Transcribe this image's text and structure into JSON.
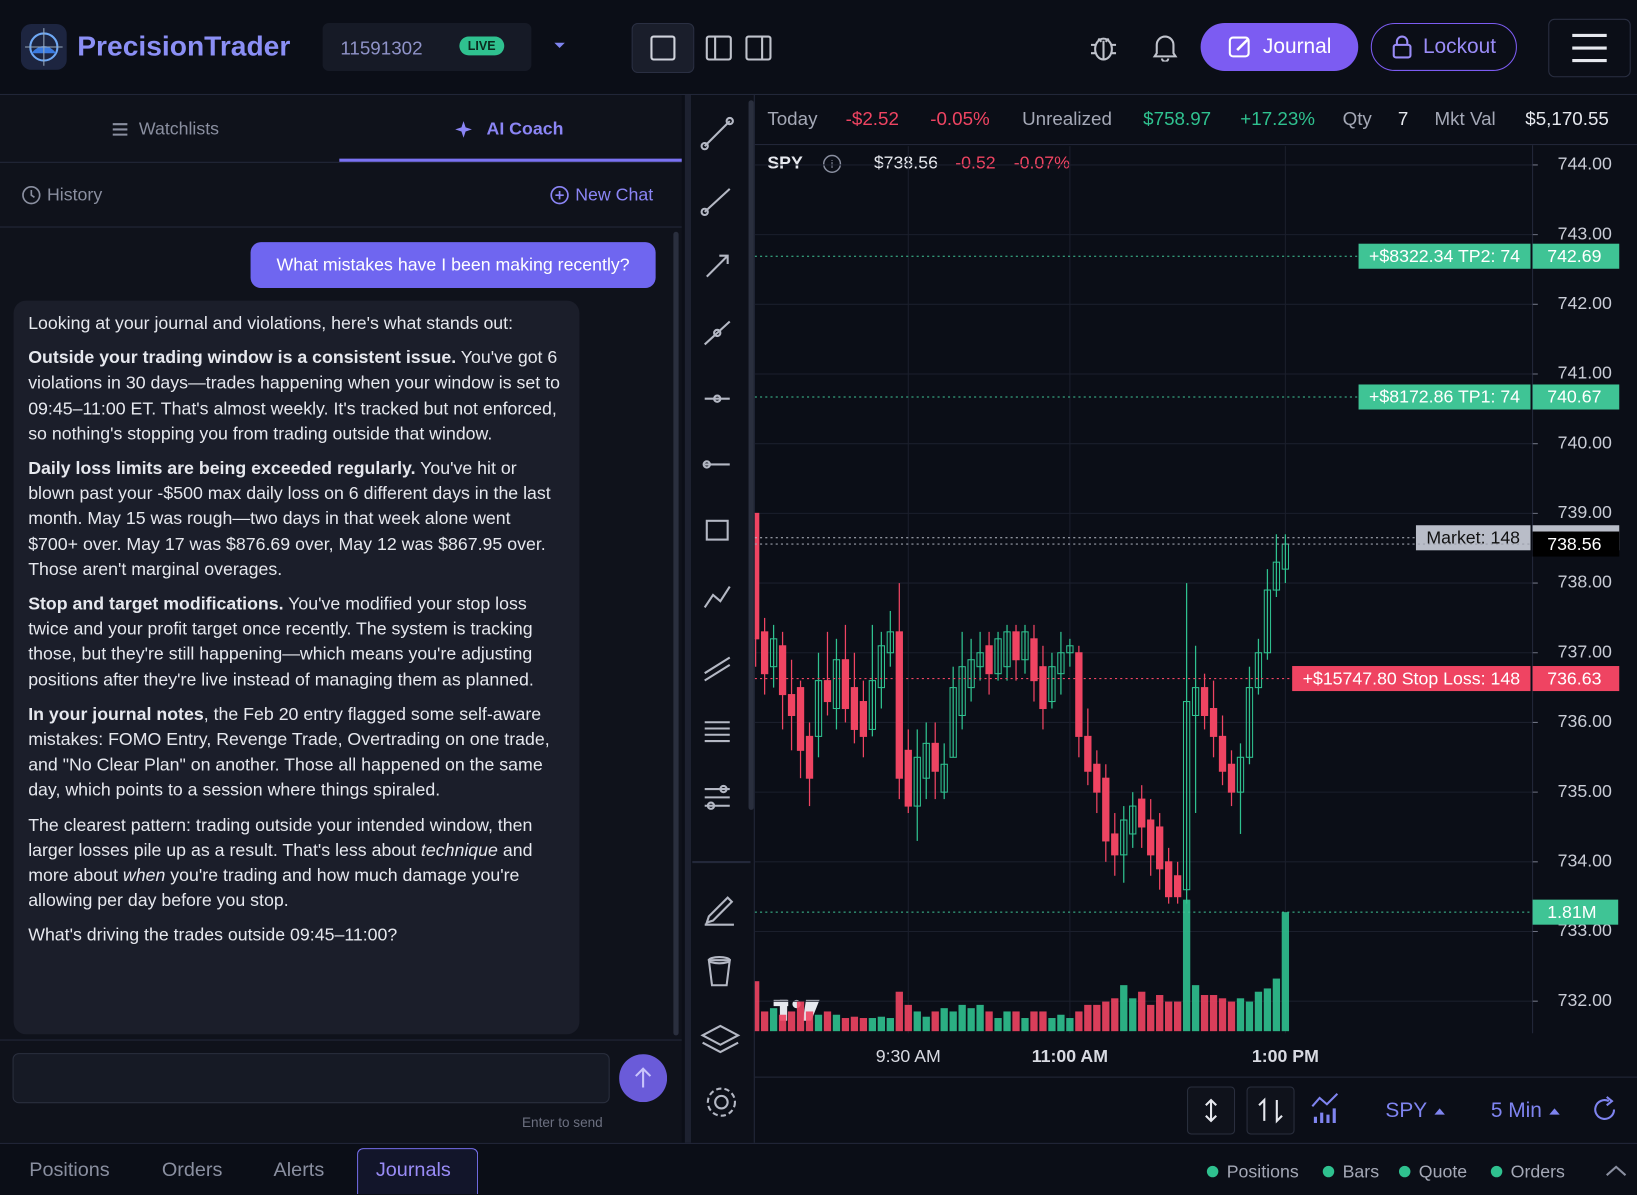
{
  "header": {
    "brand": "PrecisionTrader",
    "account": "11591302",
    "account_status": "LIVE",
    "journal_button": "Journal",
    "lockout_button": "Lockout"
  },
  "sidebar": {
    "tabs": [
      "Watchlists",
      "AI Coach"
    ],
    "history": "History",
    "new_chat": "New Chat",
    "input_hint": "Enter to send",
    "messages": [
      {
        "role": "user",
        "text": "What mistakes have I been making recently?"
      },
      {
        "role": "assistant",
        "paragraphs": [
          [
            "Looking at your journal and violations, here's what stands out:"
          ],
          [
            "Outside your trading window is a consistent issue.",
            " You've got 6 violations in 30 days—trades happening when your window is set to 09:45–11:00 ET. That's almost weekly. It's tracked but not enforced, so nothing's stopping you from trading outside that window."
          ],
          [
            "Daily loss limits are being exceeded regularly.",
            " You've hit or blown past your -$500 max daily loss on 6 different days in the last month. May 15 was rough—two days in that week alone went $700+ over. May 17 was $876.69 over, May 12 was $867.95 over. Those aren't marginal overages."
          ],
          [
            "Stop and target modifications.",
            " You've modified your stop loss twice and your profit target once recently. The system is tracking those, but they're still happening—which means you're adjusting positions after they're live instead of managing them as planned."
          ],
          [
            "In your journal notes",
            ", the Feb 20 entry flagged some self-aware mistakes: FOMO Entry, Revenge Trade, Overtrading on one trade, and \"No Clear Plan\" on another. Those all happened on the same day, which points to a session where things spiraled."
          ],
          [
            "The clearest pattern: trading outside your intended window, then larger losses pile up as a result. That's less about ",
            "technique",
            " and more about ",
            "when",
            " you're trading and how much damage you're allowing per day before you stop."
          ],
          [
            "What's driving the trades outside 09:45–11:00?"
          ]
        ]
      }
    ]
  },
  "stats_bar": {
    "today_label": "Today",
    "today_change": "-$2.52",
    "today_pct": "-0.05%",
    "unrealized_label": "Unrealized",
    "unrealized_value": "$758.97",
    "unrealized_pct": "+17.23%",
    "qty_label": "Qty",
    "qty": 7,
    "mkt_val_label": "Mkt Val",
    "mkt_val": "$5,170.55"
  },
  "symbol_bar": {
    "symbol": "SPY",
    "price": "$738.56",
    "change": "-0.52",
    "change_pct": "-0.07%"
  },
  "chart_data": {
    "type": "candlestick",
    "up_color": "#2fc18f",
    "down_color": "#ef4462",
    "categories": [
      null,
      null,
      null,
      null,
      null,
      null,
      null,
      null,
      null,
      null,
      null,
      null,
      null,
      null,
      null,
      null,
      null,
      "9:30 AM",
      null,
      null,
      null,
      null,
      null,
      null,
      null,
      null,
      null,
      null,
      null,
      null,
      null,
      null,
      null,
      null,
      null,
      "11:00 AM",
      null,
      null,
      null,
      null,
      null,
      null,
      null,
      null,
      null,
      null,
      null,
      null,
      null,
      null,
      null,
      null,
      null,
      null,
      null,
      null,
      null,
      null,
      null,
      "1:00 PM"
    ],
    "open": [
      739.0,
      737.3,
      736.8,
      737.1,
      736.4,
      736.5,
      735.8,
      735.8,
      736.6,
      736.2,
      736.9,
      736.5,
      736.3,
      735.9,
      736.5,
      737.0,
      737.3,
      735.6,
      734.8,
      735.2,
      735.7,
      735.0,
      735.5,
      736.1,
      736.5,
      736.8,
      737.1,
      736.7,
      736.8,
      737.3,
      736.9,
      737.2,
      736.8,
      736.3,
      736.7,
      737.0,
      737.0,
      735.8,
      735.4,
      735.2,
      734.4,
      734.1,
      734.4,
      734.9,
      734.6,
      734.5,
      734.0,
      733.8,
      733.6,
      736.1,
      736.5,
      736.2,
      735.8,
      735.4,
      735.0,
      735.5,
      736.5,
      737.0,
      737.9,
      738.2
    ],
    "high": [
      739.0,
      737.5,
      737.4,
      737.3,
      736.9,
      736.6,
      736.0,
      737.0,
      737.3,
      737.2,
      737.4,
      737.0,
      736.6,
      737.4,
      737.3,
      737.6,
      738.0,
      735.9,
      735.9,
      736.0,
      736.0,
      735.7,
      736.8,
      737.3,
      737.2,
      737.3,
      737.3,
      737.3,
      737.4,
      737.4,
      737.4,
      737.4,
      737.1,
      737.0,
      737.3,
      737.2,
      737.1,
      736.2,
      735.6,
      735.4,
      734.7,
      734.8,
      735.0,
      735.1,
      734.9,
      734.7,
      734.2,
      734.0,
      738.0,
      737.1,
      736.7,
      736.6,
      736.1,
      735.6,
      735.7,
      736.8,
      737.2,
      738.2,
      738.7,
      738.7
    ],
    "low": [
      736.8,
      736.4,
      736.5,
      735.9,
      735.6,
      735.2,
      734.8,
      735.5,
      736.1,
      735.9,
      736.0,
      735.7,
      735.5,
      735.8,
      736.2,
      736.8,
      734.9,
      734.7,
      734.3,
      734.9,
      734.9,
      734.9,
      735.5,
      735.9,
      736.3,
      736.6,
      736.4,
      736.6,
      736.6,
      736.6,
      736.7,
      736.3,
      735.9,
      736.2,
      736.4,
      736.8,
      735.5,
      735.1,
      734.7,
      734.0,
      733.8,
      733.7,
      734.2,
      734.2,
      733.8,
      733.6,
      733.4,
      733.4,
      733.4,
      734.7,
      735.9,
      735.5,
      735.1,
      734.8,
      734.4,
      735.4,
      736.4,
      736.9,
      737.8,
      738.0
    ],
    "close": [
      737.2,
      736.7,
      737.2,
      736.4,
      736.1,
      735.6,
      735.2,
      736.6,
      736.3,
      736.9,
      736.2,
      735.9,
      735.8,
      736.6,
      737.1,
      737.3,
      735.2,
      734.8,
      735.5,
      735.7,
      735.3,
      735.4,
      736.5,
      736.8,
      736.9,
      737.0,
      736.7,
      737.2,
      737.3,
      736.9,
      737.3,
      736.6,
      736.2,
      736.8,
      737.0,
      737.1,
      735.8,
      735.3,
      735.0,
      734.3,
      734.1,
      734.6,
      734.8,
      734.5,
      734.1,
      733.9,
      733.5,
      733.5,
      736.3,
      736.5,
      736.1,
      735.8,
      735.3,
      735.0,
      735.5,
      736.5,
      737.0,
      737.9,
      738.3,
      738.56
    ],
    "volume": [
      0.76,
      0.3,
      0.35,
      0.25,
      0.3,
      0.45,
      0.3,
      0.25,
      0.3,
      0.25,
      0.2,
      0.22,
      0.2,
      0.2,
      0.22,
      0.2,
      0.6,
      0.4,
      0.3,
      0.22,
      0.3,
      0.35,
      0.3,
      0.4,
      0.35,
      0.4,
      0.3,
      0.2,
      0.3,
      0.3,
      0.2,
      0.3,
      0.3,
      0.2,
      0.25,
      0.2,
      0.3,
      0.4,
      0.4,
      0.45,
      0.5,
      0.7,
      0.5,
      0.6,
      0.4,
      0.55,
      0.45,
      0.45,
      2.0,
      0.7,
      0.55,
      0.55,
      0.5,
      0.45,
      0.5,
      0.45,
      0.6,
      0.65,
      0.8,
      1.81
    ],
    "ylim": [
      731.54,
      744.27
    ],
    "yticks": [
      {
        "value": 744,
        "label": "744.00"
      },
      {
        "value": 743,
        "label": "743.00"
      },
      {
        "value": 742,
        "label": "742.00"
      },
      {
        "value": 741,
        "label": "741.00"
      },
      {
        "value": 740,
        "label": "740.00"
      },
      {
        "value": 739,
        "label": "739.00"
      },
      {
        "value": 738,
        "label": "738.00"
      },
      {
        "value": 737,
        "label": "737.00"
      },
      {
        "value": 736,
        "label": "736.00"
      },
      {
        "value": 735,
        "label": "735.00"
      },
      {
        "value": 734,
        "label": "734.00"
      },
      {
        "value": 733,
        "label": "733.00"
      },
      {
        "value": 732,
        "label": "732.00"
      }
    ],
    "grid": true,
    "price_lines": [
      {
        "value": 742.69,
        "tag": "+$8322.34 TP2: 74",
        "color": "#3fc495",
        "text_color": "#ffffff"
      },
      {
        "value": 740.67,
        "tag": "+$8172.86 TP1: 74",
        "color": "#3fc495",
        "text_color": "#ffffff"
      },
      {
        "value": 738.65,
        "tag": "Market: 148",
        "color": "#b9bdc8",
        "text_color": "#111111"
      },
      {
        "value": 738.56,
        "color": "#000000",
        "text_color": "#ffffff"
      },
      {
        "value": 736.63,
        "tag": "+$15747.80 Stop Loss: 148",
        "color": "#ef4462",
        "text_color": "#ffffff"
      }
    ],
    "volume_line": {
      "value": 1.81,
      "label": "1.81M",
      "color": "#3fc495"
    }
  },
  "chart_controls": {
    "symbol": "SPY",
    "interval": "5 Min"
  },
  "bottom_bar": {
    "tabs": [
      "Positions",
      "Orders",
      "Alerts",
      "Journals"
    ],
    "streams": [
      "Positions",
      "Bars",
      "Quote",
      "Orders"
    ]
  }
}
